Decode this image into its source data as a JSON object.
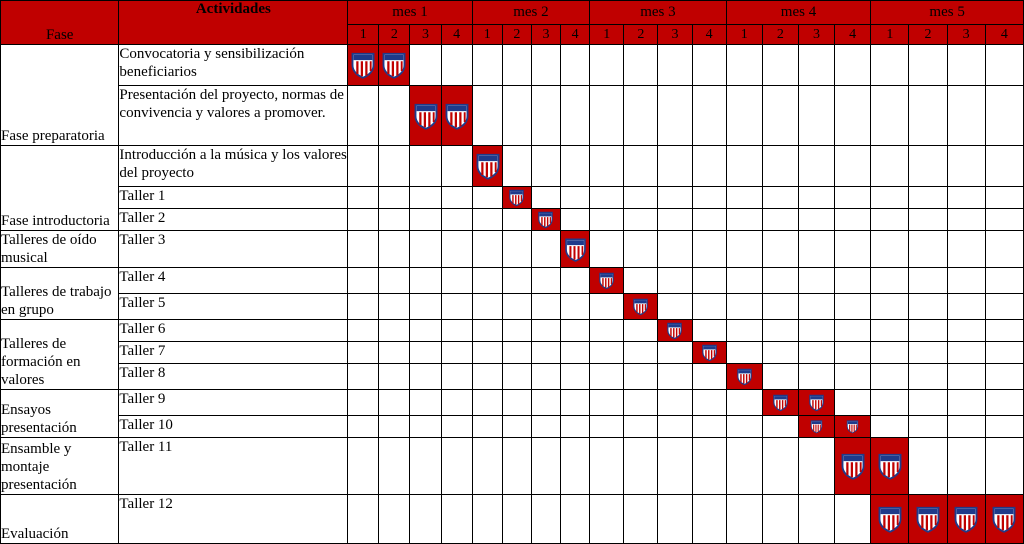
{
  "header": {
    "fase": "Fase",
    "actividades": "Actividades",
    "months": [
      "mes 1",
      "mes 2",
      "mes 3",
      "mes 4",
      "mes 5"
    ],
    "weeks": [
      "1",
      "2",
      "3",
      "4"
    ]
  },
  "colors": {
    "header_bg": "#c00000",
    "active_cell": "#c00000",
    "shield_blue": "#1f3a8a",
    "shield_red": "#c00000"
  },
  "icon": "team-shield-icon",
  "phases": [
    {
      "name": "Fase preparatoria",
      "rows": 2
    },
    {
      "name": "Fase introductoria",
      "rows": 3
    },
    {
      "name": "Talleres de oído musical",
      "rows": 1
    },
    {
      "name": "Talleres de trabajo en grupo",
      "rows": 2
    },
    {
      "name": "Talleres de formación en valores",
      "rows": 3
    },
    {
      "name": "Ensayos presentación",
      "rows": 2
    },
    {
      "name": "Ensamble y montaje presentación",
      "rows": 1
    },
    {
      "name": "Evaluación",
      "rows": 1
    }
  ],
  "activities": [
    {
      "label": "Convocatoria y sensibilización beneficiarios",
      "weeks": [
        1,
        2
      ]
    },
    {
      "label": "Presentación del proyecto, normas de convivencia y valores a promover.",
      "weeks": [
        3,
        4
      ]
    },
    {
      "label": "Introducción a la música y los valores del proyecto",
      "weeks": [
        5
      ]
    },
    {
      "label": "Taller 1",
      "weeks": [
        6
      ]
    },
    {
      "label": "Taller 2",
      "weeks": [
        7
      ]
    },
    {
      "label": "Taller 3",
      "weeks": [
        8
      ]
    },
    {
      "label": "Taller 4",
      "weeks": [
        9
      ]
    },
    {
      "label": "Taller 5",
      "weeks": [
        10
      ]
    },
    {
      "label": "Taller 6",
      "weeks": [
        11
      ]
    },
    {
      "label": "Taller 7",
      "weeks": [
        12
      ]
    },
    {
      "label": "Taller 8",
      "weeks": [
        13
      ]
    },
    {
      "label": "Taller 9",
      "weeks": [
        14,
        15
      ]
    },
    {
      "label": "Taller 10",
      "weeks": [
        15,
        16
      ]
    },
    {
      "label": "Taller 11",
      "weeks": [
        16,
        17
      ]
    },
    {
      "label": "Taller 12",
      "weeks": [
        17,
        18,
        19,
        20
      ]
    }
  ]
}
